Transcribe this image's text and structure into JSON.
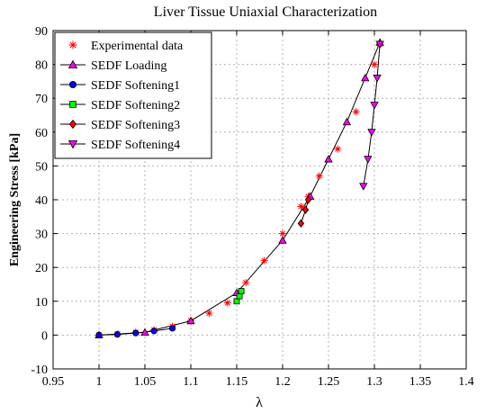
{
  "chart_data": {
    "type": "scatter",
    "title": "Liver Tissue Uniaxial Characterization",
    "xlabel": "λ",
    "ylabel": "Engineering Stress [kPa]",
    "xlim": [
      0.95,
      1.4
    ],
    "ylim": [
      -10,
      90
    ],
    "xticks": [
      "0.95",
      "1",
      "1.05",
      "1.1",
      "1.15",
      "1.2",
      "1.25",
      "1.3",
      "1.35",
      "1.4"
    ],
    "yticks": [
      "-10",
      "0",
      "10",
      "20",
      "30",
      "40",
      "50",
      "60",
      "70",
      "80",
      "90"
    ],
    "grid": true,
    "legend_position": "top-left",
    "series": [
      {
        "name": "Experimental data",
        "marker": "asterisk",
        "color": "#ff0000",
        "x": [
          1.0,
          1.02,
          1.04,
          1.06,
          1.08,
          1.1,
          1.12,
          1.14,
          1.16,
          1.18,
          1.2,
          1.22,
          1.228,
          1.24,
          1.26,
          1.28,
          1.3,
          1.306
        ],
        "y": [
          0,
          0.3,
          0.8,
          1.5,
          2.6,
          4.2,
          6.5,
          9.5,
          15.5,
          22,
          30,
          38,
          41,
          47,
          55,
          66,
          80,
          86
        ]
      },
      {
        "name": "SEDF Loading",
        "marker": "triangle-up",
        "color": "#ff00ff",
        "x": [
          1.0,
          1.05,
          1.1,
          1.15,
          1.2,
          1.23,
          1.25,
          1.27,
          1.29,
          1.306
        ],
        "y": [
          0,
          0.8,
          4.2,
          12.5,
          28,
          41,
          52,
          63,
          76,
          86.5
        ]
      },
      {
        "name": "SEDF Softening1",
        "marker": "circle",
        "color": "#0000ff",
        "x": [
          1.0,
          1.02,
          1.04,
          1.06,
          1.08
        ],
        "y": [
          0,
          0.2,
          0.6,
          1.2,
          2.0
        ]
      },
      {
        "name": "SEDF Softening2",
        "marker": "square",
        "color": "#00ff00",
        "x": [
          1.15,
          1.153,
          1.155
        ],
        "y": [
          10,
          11.5,
          13
        ]
      },
      {
        "name": "SEDF Softening3",
        "marker": "diamond",
        "color": "#ff0000",
        "x": [
          1.22,
          1.225,
          1.228
        ],
        "y": [
          33,
          37,
          40
        ]
      },
      {
        "name": "SEDF Softening4",
        "marker": "triangle-down",
        "color": "#ff00ff",
        "x": [
          1.306,
          1.303,
          1.3,
          1.297,
          1.293,
          1.288
        ],
        "y": [
          86,
          76,
          68,
          60,
          52,
          44
        ]
      }
    ]
  }
}
